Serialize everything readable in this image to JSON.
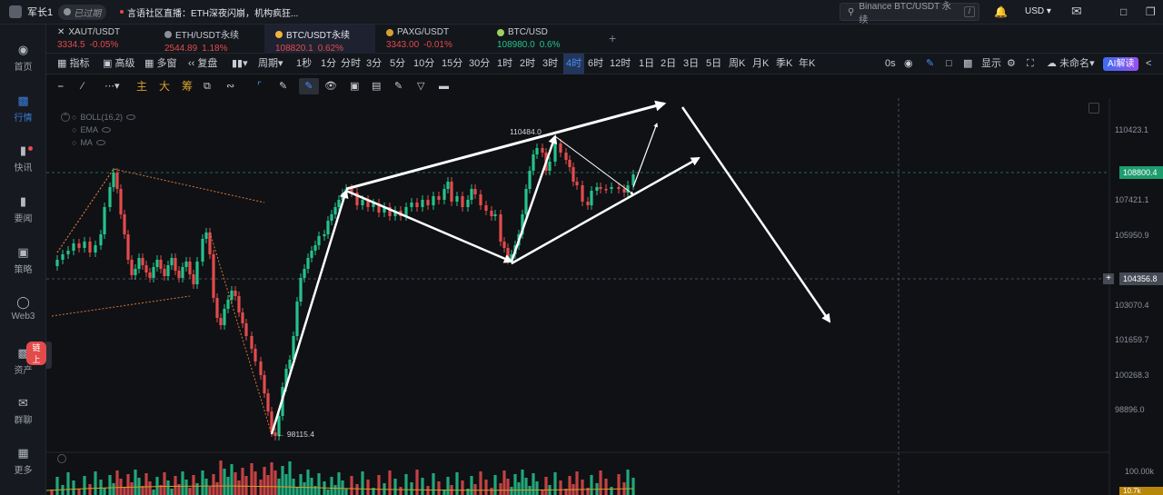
{
  "topbar": {
    "username": "军长1",
    "expired": "已过期",
    "ticker": "言语社区直播：ETH深夜闪崩，机构疯狂...",
    "search_placeholder": "Binance BTC/USDT 永续",
    "currency": "USD"
  },
  "sidebar": [
    {
      "label": "首页",
      "icon": "home-icon"
    },
    {
      "label": "行情",
      "icon": "market-icon"
    },
    {
      "label": "快讯",
      "icon": "news-icon"
    },
    {
      "label": "要闻",
      "icon": "headline-icon"
    },
    {
      "label": "策略",
      "icon": "strategy-icon"
    },
    {
      "label": "Web3",
      "icon": "web3-icon"
    },
    {
      "label": "资产",
      "icon": "wallet-icon",
      "badge": "链上"
    },
    {
      "label": "群聊",
      "icon": "chat-icon"
    },
    {
      "label": "更多",
      "icon": "more-icon"
    }
  ],
  "tabs": [
    {
      "symbol": "XAUT/USDT",
      "price": "3334.5",
      "change": "-0.05%",
      "trend": "neg",
      "coin_color": "#3b7bd9"
    },
    {
      "symbol": "ETH/USDT永续",
      "price": "2544.89",
      "change": "1.18%",
      "trend": "neg",
      "coin_color": "#8a8f9a"
    },
    {
      "symbol": "BTC/USDT永续",
      "price": "108820.1",
      "change": "0.62%",
      "trend": "neg",
      "coin_color": "#f2b33d"
    },
    {
      "symbol": "PAXG/USDT",
      "price": "3343.00",
      "change": "-0.01%",
      "trend": "neg",
      "coin_color": "#d6a12b"
    },
    {
      "symbol": "BTC/USD",
      "price": "108980.0",
      "change": "0.6%",
      "trend": "pos",
      "coin_color": "#9bd45a"
    }
  ],
  "toolbar": {
    "indicator": "指标",
    "advanced": "高级",
    "multi": "多窗",
    "replay": "复盘",
    "period": "周期",
    "timeframes": [
      "1秒",
      "1分",
      "分时",
      "3分",
      "5分",
      "10分",
      "15分",
      "30分",
      "1时",
      "2时",
      "3时",
      "4时",
      "6时",
      "12时",
      "1日",
      "2日",
      "3日",
      "5日",
      "周K",
      "月K",
      "季K",
      "年K"
    ],
    "selected_tf": "4时",
    "countdown": "0s",
    "display": "显示",
    "unnamed": "未命名",
    "ai": "AI解读"
  },
  "drawbar": {
    "main": "主",
    "big": "大",
    "chips": "筹"
  },
  "indicators": [
    "BOLL(16,2)",
    "EMA",
    "MA"
  ],
  "chart": {
    "price_ticks": [
      "110423.1",
      "107421.1",
      "105950.9",
      "103070.4",
      "101659.7",
      "100268.3",
      "98896.0"
    ],
    "current_price": "108800.4",
    "cursor_price": "104356.8",
    "high_label": "110484.0",
    "low_label": "98115.4",
    "volume_tick": "100.00k",
    "volume_tag": "10.7k",
    "colors": {
      "up": "#25c28b",
      "down": "#e34b4b",
      "bg": "#0f1115"
    }
  }
}
